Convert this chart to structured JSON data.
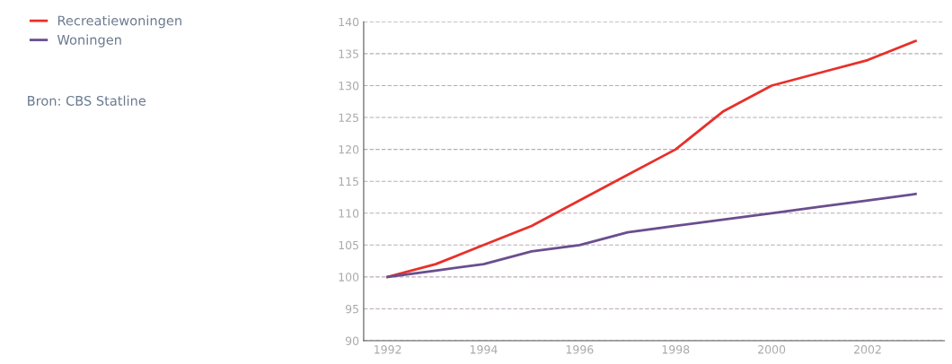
{
  "chart_data": {
    "type": "line",
    "x": [
      1992,
      1993,
      1994,
      1995,
      1996,
      1997,
      1998,
      1999,
      2000,
      2001,
      2002,
      2003
    ],
    "series": [
      {
        "name": "Recreatiewoningen",
        "color": "#e8302a",
        "values": [
          100,
          102,
          105,
          108,
          112,
          116,
          120,
          126,
          130,
          132,
          134,
          137
        ]
      },
      {
        "name": "Woningen",
        "color": "#6a4e8e",
        "values": [
          100,
          101,
          102,
          104,
          105,
          107,
          108,
          109,
          110,
          111,
          112,
          113
        ]
      }
    ],
    "xlim": [
      1991.5,
      2003.6
    ],
    "xticks": [
      1992,
      1994,
      1996,
      1998,
      2000,
      2002
    ],
    "ylim": [
      90,
      140
    ],
    "yticks": [
      90,
      95,
      100,
      105,
      110,
      115,
      120,
      125,
      130,
      135,
      140
    ],
    "grid": "y",
    "legend": "left",
    "line_style": "solid",
    "marker": "none",
    "annotations": [
      "Bron: CBS Statline"
    ]
  }
}
